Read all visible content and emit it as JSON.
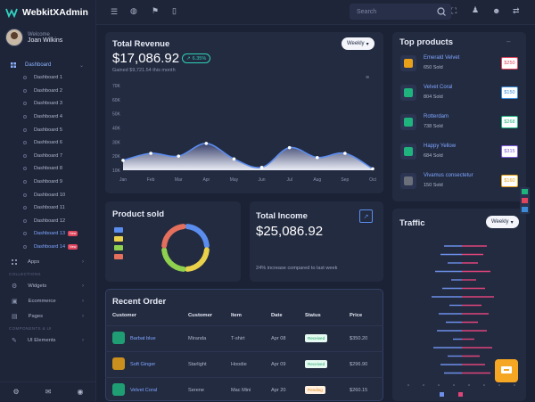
{
  "app": {
    "title": "WebkitXAdmin"
  },
  "user": {
    "welcome": "Welcome",
    "name": "Joan Wilkins"
  },
  "sidebar": {
    "dashboard_group": "Dashboard",
    "items": [
      {
        "label": "Dashboard 1"
      },
      {
        "label": "Dashboard 2"
      },
      {
        "label": "Dashboard 3"
      },
      {
        "label": "Dashboard 4"
      },
      {
        "label": "Dashboard 5"
      },
      {
        "label": "Dashboard 6"
      },
      {
        "label": "Dashboard 7"
      },
      {
        "label": "Dashboard 8"
      },
      {
        "label": "Dashboard 9"
      },
      {
        "label": "Dashboard 10"
      },
      {
        "label": "Dashboard 11"
      },
      {
        "label": "Dashboard 12"
      },
      {
        "label": "Dashboard 13",
        "badge": "New"
      },
      {
        "label": "Dashboard 14",
        "badge": "New"
      }
    ],
    "apps": "Apps",
    "collections_section": "COLLECTIONS",
    "widgets": "Widgets",
    "ecommerce": "Ecommerce",
    "pages": "Pages",
    "components_section": "COMPONENTS & UI",
    "ui_elements": "UI Elements"
  },
  "topbar": {
    "search_placeholder": "Search"
  },
  "revenue": {
    "title": "Total Revenue",
    "value": "$17,086.92",
    "change": "6.35%",
    "gained": "Gained $9,721.54 this month",
    "period": "Weekly"
  },
  "chart_data": {
    "type": "area",
    "categories": [
      "Jan",
      "Feb",
      "Mar",
      "Apr",
      "May",
      "Jun",
      "Jul",
      "Aug",
      "Sep",
      "Oct"
    ],
    "values": [
      17,
      22,
      20,
      29,
      18,
      12,
      26,
      19,
      22,
      11
    ],
    "y_ticks": [
      "70K",
      "60K",
      "50K",
      "40K",
      "30K",
      "20K",
      "10K"
    ],
    "ylim": [
      10,
      70
    ],
    "color": "#5b8def"
  },
  "product_sold": {
    "title": "Product sold",
    "colors": [
      "#5b8def",
      "#e9d24a",
      "#8fd14f",
      "#e46f5c"
    ]
  },
  "income": {
    "title": "Total Income",
    "value": "$25,086.92",
    "note": "24% increase compared to last week"
  },
  "top_products": {
    "title": "Top products",
    "items": [
      {
        "name": "Emerald Velvet",
        "sold": "650 Sold",
        "price": "$250",
        "color": "#e0455d"
      },
      {
        "name": "Velvet Coral",
        "sold": "804 Sold",
        "price": "$150",
        "color": "#3b8bd6"
      },
      {
        "name": "Rotterdam",
        "sold": "738 Sold",
        "price": "$268",
        "color": "#1fb37d"
      },
      {
        "name": "Happy Yellow",
        "sold": "684 Sold",
        "price": "$315",
        "color": "#7d5bd6"
      },
      {
        "name": "Vivamus consectetur",
        "sold": "150 Sold",
        "price": "$160",
        "color": "#e8a118"
      }
    ]
  },
  "traffic": {
    "title": "Traffic",
    "period": "Weekly"
  },
  "recent_order": {
    "title": "Recent Order",
    "headers": [
      "Customer",
      "Customer",
      "Item",
      "Date",
      "Status",
      "Price"
    ],
    "rows": [
      {
        "product": "Barbat blue",
        "customer": "Miranda",
        "item": "T-shirt",
        "date": "Apr 08",
        "status": "Received",
        "price": "$350.20"
      },
      {
        "product": "Soft Ginger",
        "customer": "Starlight",
        "item": "Hoodie",
        "date": "Apr 09",
        "status": "Received",
        "price": "$296.90"
      },
      {
        "product": "Velvet Coral",
        "customer": "Serene",
        "item": "Mac Mini",
        "date": "Apr 20",
        "status": "Pending",
        "price": "$260.15"
      }
    ]
  }
}
